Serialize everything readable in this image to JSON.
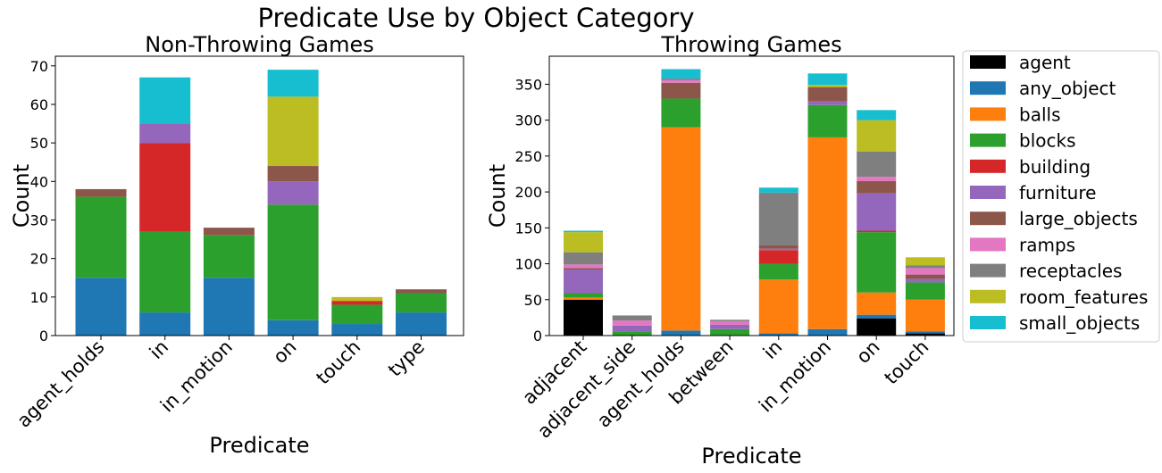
{
  "suptitle": "Predicate Use by Object Category",
  "colors": {
    "agent": "#000000",
    "any_object": "#1f77b4",
    "balls": "#ff7f0e",
    "blocks": "#2ca02c",
    "building": "#d62728",
    "furniture": "#9467bd",
    "large_objects": "#8c564b",
    "ramps": "#e377c2",
    "receptacles": "#7f7f7f",
    "room_features": "#bcbd22",
    "small_objects": "#17becf"
  },
  "legend": {
    "placement": "right, outside plots",
    "entries": [
      "agent",
      "any_object",
      "balls",
      "blocks",
      "building",
      "furniture",
      "large_objects",
      "ramps",
      "receptacles",
      "room_features",
      "small_objects"
    ]
  },
  "chart_data": [
    {
      "type": "bar",
      "stacked": true,
      "title": "Non-Throwing Games",
      "xlabel": "Predicate",
      "ylabel": "Count",
      "ylim": [
        0,
        72.5
      ],
      "yticks": [
        0,
        10,
        20,
        30,
        40,
        50,
        60,
        70
      ],
      "grid": false,
      "categories": [
        "agent_holds",
        "in",
        "in_motion",
        "on",
        "touch",
        "type"
      ],
      "series": [
        {
          "name": "agent",
          "values": [
            0,
            0,
            0,
            0,
            0,
            0
          ]
        },
        {
          "name": "any_object",
          "values": [
            15,
            6,
            15,
            4,
            3,
            6
          ]
        },
        {
          "name": "balls",
          "values": [
            0,
            0,
            0,
            0,
            0,
            0
          ]
        },
        {
          "name": "blocks",
          "values": [
            21,
            21,
            11,
            30,
            5,
            5
          ]
        },
        {
          "name": "building",
          "values": [
            0,
            23,
            0,
            0,
            1,
            0
          ]
        },
        {
          "name": "furniture",
          "values": [
            0,
            5,
            0,
            6,
            0,
            0
          ]
        },
        {
          "name": "large_objects",
          "values": [
            2,
            0,
            2,
            4,
            0,
            1
          ]
        },
        {
          "name": "ramps",
          "values": [
            0,
            0,
            0,
            0,
            0,
            0
          ]
        },
        {
          "name": "receptacles",
          "values": [
            0,
            0,
            0,
            0,
            0,
            0
          ]
        },
        {
          "name": "room_features",
          "values": [
            0,
            0,
            0,
            18,
            1,
            0
          ]
        },
        {
          "name": "small_objects",
          "values": [
            0,
            12,
            0,
            7,
            0,
            0
          ]
        }
      ]
    },
    {
      "type": "bar",
      "stacked": true,
      "title": "Throwing Games",
      "xlabel": "Predicate",
      "ylabel": "Count",
      "ylim": [
        0,
        389
      ],
      "yticks": [
        0,
        50,
        100,
        150,
        200,
        250,
        300,
        350
      ],
      "grid": false,
      "categories": [
        "adjacent",
        "adjacent_side",
        "agent_holds",
        "between",
        "in",
        "in_motion",
        "on",
        "touch"
      ],
      "series": [
        {
          "name": "agent",
          "values": [
            50,
            0,
            0,
            0,
            0,
            0,
            24,
            3
          ]
        },
        {
          "name": "any_object",
          "values": [
            0,
            0,
            7,
            0,
            3,
            9,
            5,
            3
          ]
        },
        {
          "name": "balls",
          "values": [
            3,
            0,
            283,
            0,
            75,
            267,
            31,
            44
          ]
        },
        {
          "name": "blocks",
          "values": [
            6,
            6,
            40,
            9,
            22,
            45,
            84,
            24
          ]
        },
        {
          "name": "building",
          "values": [
            0,
            0,
            0,
            0,
            19,
            0,
            2,
            0
          ]
        },
        {
          "name": "furniture",
          "values": [
            33,
            8,
            0,
            6,
            2,
            5,
            52,
            5
          ]
        },
        {
          "name": "large_objects",
          "values": [
            2,
            0,
            22,
            0,
            5,
            20,
            17,
            6
          ]
        },
        {
          "name": "ramps",
          "values": [
            5,
            7,
            4,
            5,
            0,
            0,
            6,
            9
          ]
        },
        {
          "name": "receptacles",
          "values": [
            17,
            7,
            2,
            2,
            73,
            0,
            35,
            4
          ]
        },
        {
          "name": "room_features",
          "values": [
            28,
            0,
            0,
            0,
            0,
            3,
            44,
            11
          ]
        },
        {
          "name": "small_objects",
          "values": [
            2,
            0,
            13,
            0,
            7,
            16,
            14,
            0
          ]
        }
      ]
    }
  ]
}
